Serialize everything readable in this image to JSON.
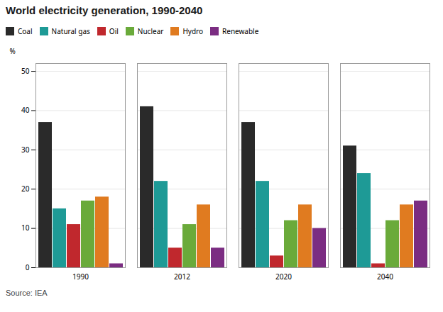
{
  "chart_data": {
    "type": "bar",
    "title": "World electricity generation, 1990-2040",
    "ylabel": "%",
    "source": "Source: IEA",
    "categories": [
      "1990",
      "2012",
      "2020",
      "2040"
    ],
    "series": [
      {
        "name": "Coal",
        "color": "#2a2a2a",
        "values": [
          37,
          41,
          37,
          31
        ]
      },
      {
        "name": "Natural gas",
        "color": "#1e9a96",
        "values": [
          15,
          22,
          22,
          24
        ]
      },
      {
        "name": "Oil",
        "color": "#c0282d",
        "values": [
          11,
          5,
          3,
          1
        ]
      },
      {
        "name": "Nuclear",
        "color": "#6aaa3a",
        "values": [
          17,
          11,
          12,
          12
        ]
      },
      {
        "name": "Hydro",
        "color": "#e07b20",
        "values": [
          18,
          16,
          16,
          16
        ]
      },
      {
        "name": "Renewable",
        "color": "#7b2d82",
        "values": [
          1,
          5,
          10,
          17
        ]
      }
    ],
    "ylim": [
      0,
      52
    ],
    "yticks": [
      0,
      10,
      20,
      30,
      40,
      50
    ],
    "grid": true,
    "legend": "upper left"
  }
}
